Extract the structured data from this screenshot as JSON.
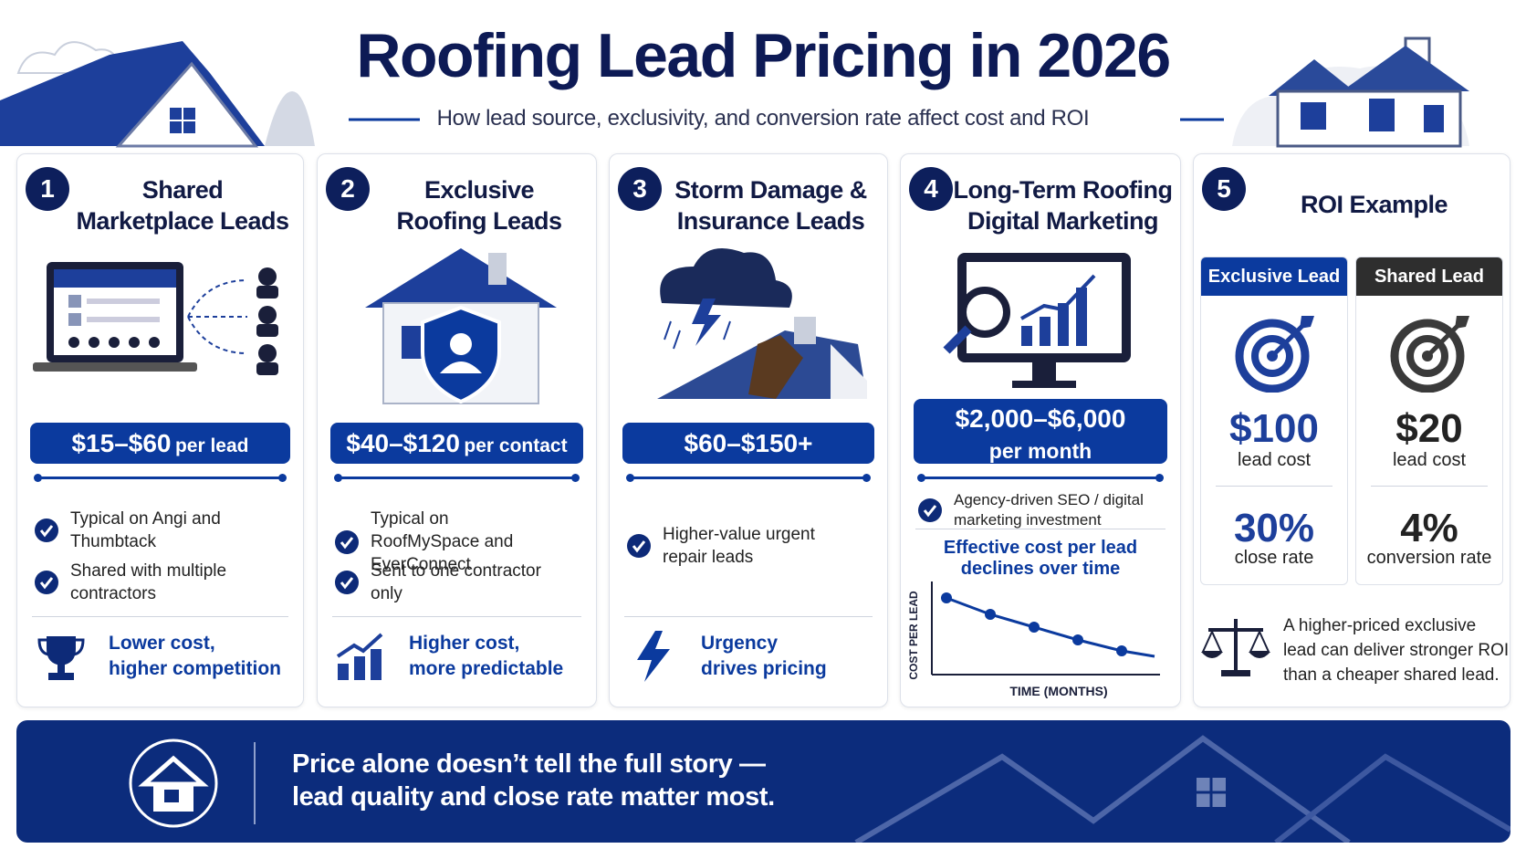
{
  "header": {
    "title": "Roofing Lead Pricing in 2026",
    "subtitle": "How lead source, exclusivity, and conversion rate affect cost and ROI"
  },
  "cards": [
    {
      "number": "1",
      "title": [
        "Shared",
        "Marketplace Leads"
      ],
      "price": "$15–$60",
      "price_unit": "per lead",
      "bullets": [
        "Typical on Angi and Thumbtack",
        "Shared with multiple contractors"
      ],
      "takeaway": [
        "Lower cost,",
        "higher competition"
      ]
    },
    {
      "number": "2",
      "title": [
        "Exclusive",
        "Roofing Leads"
      ],
      "price": "$40–$120",
      "price_unit": "per contact",
      "bullets": [
        "Typical on RoofMySpace and EverConnect",
        "Sent to one contractor only"
      ],
      "takeaway": [
        "Higher cost,",
        "more predictable"
      ]
    },
    {
      "number": "3",
      "title": [
        "Storm Damage &",
        "Insurance Leads"
      ],
      "price": "$60–$150+",
      "bullets": [
        "Higher-value urgent repair leads"
      ],
      "takeaway": [
        "Urgency",
        "drives pricing"
      ]
    },
    {
      "number": "4",
      "title": [
        "Long-Term Roofing",
        "Digital Marketing"
      ],
      "price": "$2,000–$6,000",
      "price_unit": "per month",
      "bullets": [
        "Agency-driven SEO / digital marketing investment"
      ],
      "chart": {
        "title": [
          "Effective cost per lead",
          "declines over time"
        ],
        "y_label": "COST PER LEAD",
        "x_label": "TIME (MONTHS)"
      }
    }
  ],
  "roi": {
    "number": "5",
    "title": "ROI Example",
    "columns": [
      {
        "name": "Exclusive Lead",
        "cost": "$100",
        "cost_label": "lead cost",
        "rate": "30%",
        "rate_label": "close rate"
      },
      {
        "name": "Shared Lead",
        "cost": "$20",
        "cost_label": "lead cost",
        "rate": "4%",
        "rate_label": "conversion rate"
      }
    ],
    "note": [
      "A higher-priced exclusive",
      "lead can deliver stronger ROI",
      "than a cheaper shared lead."
    ]
  },
  "banner": {
    "text": [
      "Price alone doesn’t tell the full story —",
      "lead quality and close rate matter most."
    ]
  }
}
